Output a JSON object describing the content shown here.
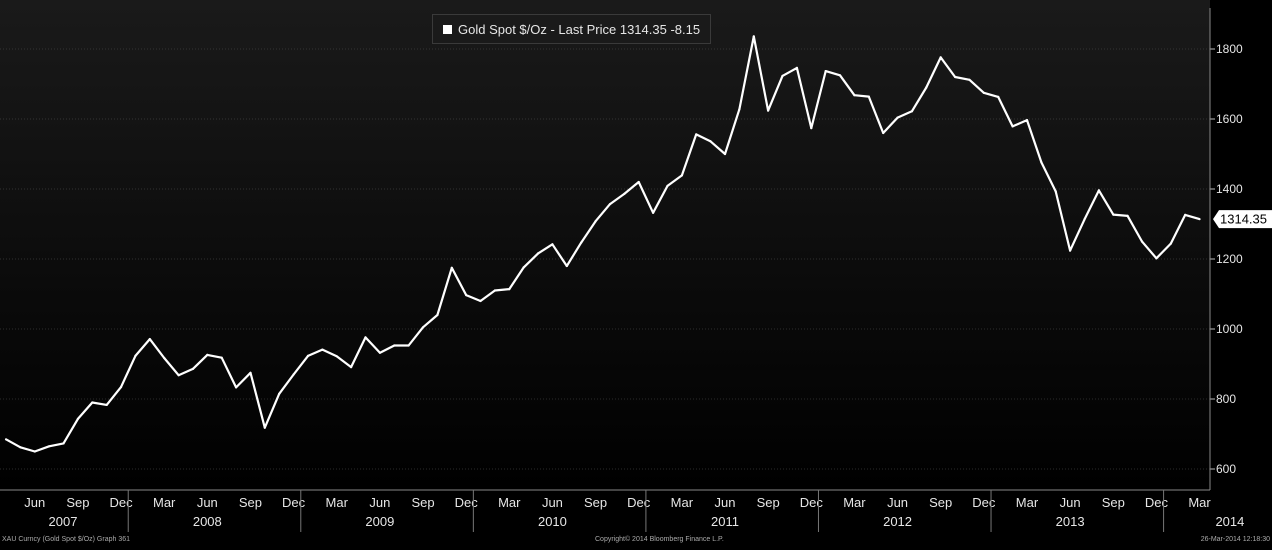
{
  "legend": {
    "label": "Gold Spot $/Oz - Last Price 1314.35  -8.15"
  },
  "last_price_tag": "1314.35",
  "footer": {
    "left": "XAU Curncy (Gold Spot  $/Oz) Graph 361",
    "center": "Copyright© 2014 Bloomberg Finance L.P.",
    "right": "26-Mar-2014 12:18:30"
  },
  "colors": {
    "background_top": "#1a1a1a",
    "background_bottom": "#000000",
    "line": "#ffffff",
    "grid": "#555555",
    "text": "#e6e6e6"
  },
  "chart_data": {
    "type": "line",
    "title": "",
    "xlabel": "",
    "ylabel": "",
    "ylim": [
      540,
      1940
    ],
    "yticks": [
      600,
      800,
      1000,
      1200,
      1400,
      1600,
      1800
    ],
    "x_month_labels": [
      "Jun",
      "Sep",
      "Dec",
      "Mar",
      "Jun",
      "Sep",
      "Dec",
      "Mar",
      "Jun",
      "Sep",
      "Dec",
      "Mar",
      "Jun",
      "Sep",
      "Dec",
      "Mar",
      "Jun",
      "Sep",
      "Dec",
      "Mar",
      "Jun",
      "Sep",
      "Dec",
      "Mar",
      "Jun",
      "Sep",
      "Dec",
      "Mar"
    ],
    "x_year_labels": [
      "2007",
      "2008",
      "2009",
      "2010",
      "2011",
      "2012",
      "2013",
      "2014"
    ],
    "series": [
      {
        "values": [
          {
            "x": "2007-04",
            "y": 685
          },
          {
            "x": "2007-05",
            "y": 662
          },
          {
            "x": "2007-06",
            "y": 650
          },
          {
            "x": "2007-07",
            "y": 665
          },
          {
            "x": "2007-08",
            "y": 673
          },
          {
            "x": "2007-09",
            "y": 743
          },
          {
            "x": "2007-10",
            "y": 790
          },
          {
            "x": "2007-11",
            "y": 783
          },
          {
            "x": "2007-12",
            "y": 834
          },
          {
            "x": "2008-01",
            "y": 923
          },
          {
            "x": "2008-02",
            "y": 971
          },
          {
            "x": "2008-03",
            "y": 917
          },
          {
            "x": "2008-04",
            "y": 868
          },
          {
            "x": "2008-05",
            "y": 886
          },
          {
            "x": "2008-06",
            "y": 926
          },
          {
            "x": "2008-07",
            "y": 918
          },
          {
            "x": "2008-08",
            "y": 833
          },
          {
            "x": "2008-09",
            "y": 875
          },
          {
            "x": "2008-10",
            "y": 718
          },
          {
            "x": "2008-11",
            "y": 815
          },
          {
            "x": "2008-12",
            "y": 870
          },
          {
            "x": "2009-01",
            "y": 923
          },
          {
            "x": "2009-02",
            "y": 941
          },
          {
            "x": "2009-03",
            "y": 922
          },
          {
            "x": "2009-04",
            "y": 891
          },
          {
            "x": "2009-05",
            "y": 976
          },
          {
            "x": "2009-06",
            "y": 932
          },
          {
            "x": "2009-07",
            "y": 953
          },
          {
            "x": "2009-08",
            "y": 953
          },
          {
            "x": "2009-09",
            "y": 1005
          },
          {
            "x": "2009-10",
            "y": 1040
          },
          {
            "x": "2009-11",
            "y": 1175
          },
          {
            "x": "2009-12",
            "y": 1097
          },
          {
            "x": "2010-01",
            "y": 1080
          },
          {
            "x": "2010-02",
            "y": 1110
          },
          {
            "x": "2010-03",
            "y": 1114
          },
          {
            "x": "2010-04",
            "y": 1176
          },
          {
            "x": "2010-05",
            "y": 1216
          },
          {
            "x": "2010-06",
            "y": 1242
          },
          {
            "x": "2010-07",
            "y": 1180
          },
          {
            "x": "2010-08",
            "y": 1247
          },
          {
            "x": "2010-09",
            "y": 1308
          },
          {
            "x": "2010-10",
            "y": 1357
          },
          {
            "x": "2010-11",
            "y": 1386
          },
          {
            "x": "2010-12",
            "y": 1420
          },
          {
            "x": "2011-01",
            "y": 1332
          },
          {
            "x": "2011-02",
            "y": 1409
          },
          {
            "x": "2011-03",
            "y": 1439
          },
          {
            "x": "2011-04",
            "y": 1556
          },
          {
            "x": "2011-05",
            "y": 1536
          },
          {
            "x": "2011-06",
            "y": 1500
          },
          {
            "x": "2011-07",
            "y": 1628
          },
          {
            "x": "2011-08",
            "y": 1836
          },
          {
            "x": "2011-09",
            "y": 1624
          },
          {
            "x": "2011-10",
            "y": 1723
          },
          {
            "x": "2011-11",
            "y": 1746
          },
          {
            "x": "2011-12",
            "y": 1574
          },
          {
            "x": "2012-01",
            "y": 1737
          },
          {
            "x": "2012-02",
            "y": 1725
          },
          {
            "x": "2012-03",
            "y": 1668
          },
          {
            "x": "2012-04",
            "y": 1664
          },
          {
            "x": "2012-05",
            "y": 1560
          },
          {
            "x": "2012-06",
            "y": 1604
          },
          {
            "x": "2012-07",
            "y": 1622
          },
          {
            "x": "2012-08",
            "y": 1690
          },
          {
            "x": "2012-09",
            "y": 1776
          },
          {
            "x": "2012-10",
            "y": 1720
          },
          {
            "x": "2012-11",
            "y": 1712
          },
          {
            "x": "2012-12",
            "y": 1675
          },
          {
            "x": "2013-01",
            "y": 1663
          },
          {
            "x": "2013-02",
            "y": 1579
          },
          {
            "x": "2013-03",
            "y": 1597
          },
          {
            "x": "2013-04",
            "y": 1476
          },
          {
            "x": "2013-05",
            "y": 1393
          },
          {
            "x": "2013-06",
            "y": 1224
          },
          {
            "x": "2013-07",
            "y": 1313
          },
          {
            "x": "2013-08",
            "y": 1396
          },
          {
            "x": "2013-09",
            "y": 1327
          },
          {
            "x": "2013-10",
            "y": 1323
          },
          {
            "x": "2013-11",
            "y": 1250
          },
          {
            "x": "2013-12",
            "y": 1202
          },
          {
            "x": "2014-01",
            "y": 1244
          },
          {
            "x": "2014-02",
            "y": 1326
          },
          {
            "x": "2014-03",
            "y": 1314
          }
        ]
      }
    ]
  }
}
